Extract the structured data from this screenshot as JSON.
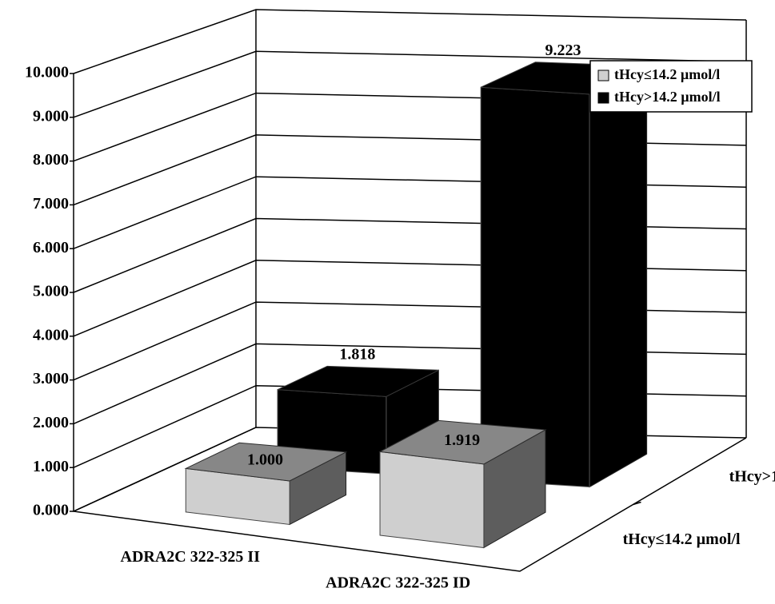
{
  "chart_data": {
    "type": "bar",
    "categories": [
      "ADRA2C 322-325 II",
      "ADRA2C 322-325 ID"
    ],
    "series": [
      {
        "name": "tHcy≤14.2 µmol/l",
        "color": "#cfcfcf",
        "values": [
          1.0,
          1.919
        ],
        "value_labels": [
          "1.000",
          "1.919"
        ]
      },
      {
        "name": "tHcy>14.2 µmol/l",
        "color": "#000000",
        "values": [
          1.818,
          9.223
        ],
        "value_labels": [
          "1.818",
          "9.223"
        ]
      }
    ],
    "ylim": [
      0,
      10
    ],
    "yticks": [
      {
        "value": 0,
        "label": "0.000"
      },
      {
        "value": 1,
        "label": "1.000"
      },
      {
        "value": 2,
        "label": "2.000"
      },
      {
        "value": 3,
        "label": "3.000"
      },
      {
        "value": 4,
        "label": "4.000"
      },
      {
        "value": 5,
        "label": "5.000"
      },
      {
        "value": 6,
        "label": "6.000"
      },
      {
        "value": 7,
        "label": "7.000"
      },
      {
        "value": 8,
        "label": "8.000"
      },
      {
        "value": 9,
        "label": "9.000"
      },
      {
        "value": 10,
        "label": "10.000"
      }
    ],
    "grid": true,
    "legend": "upper right"
  }
}
